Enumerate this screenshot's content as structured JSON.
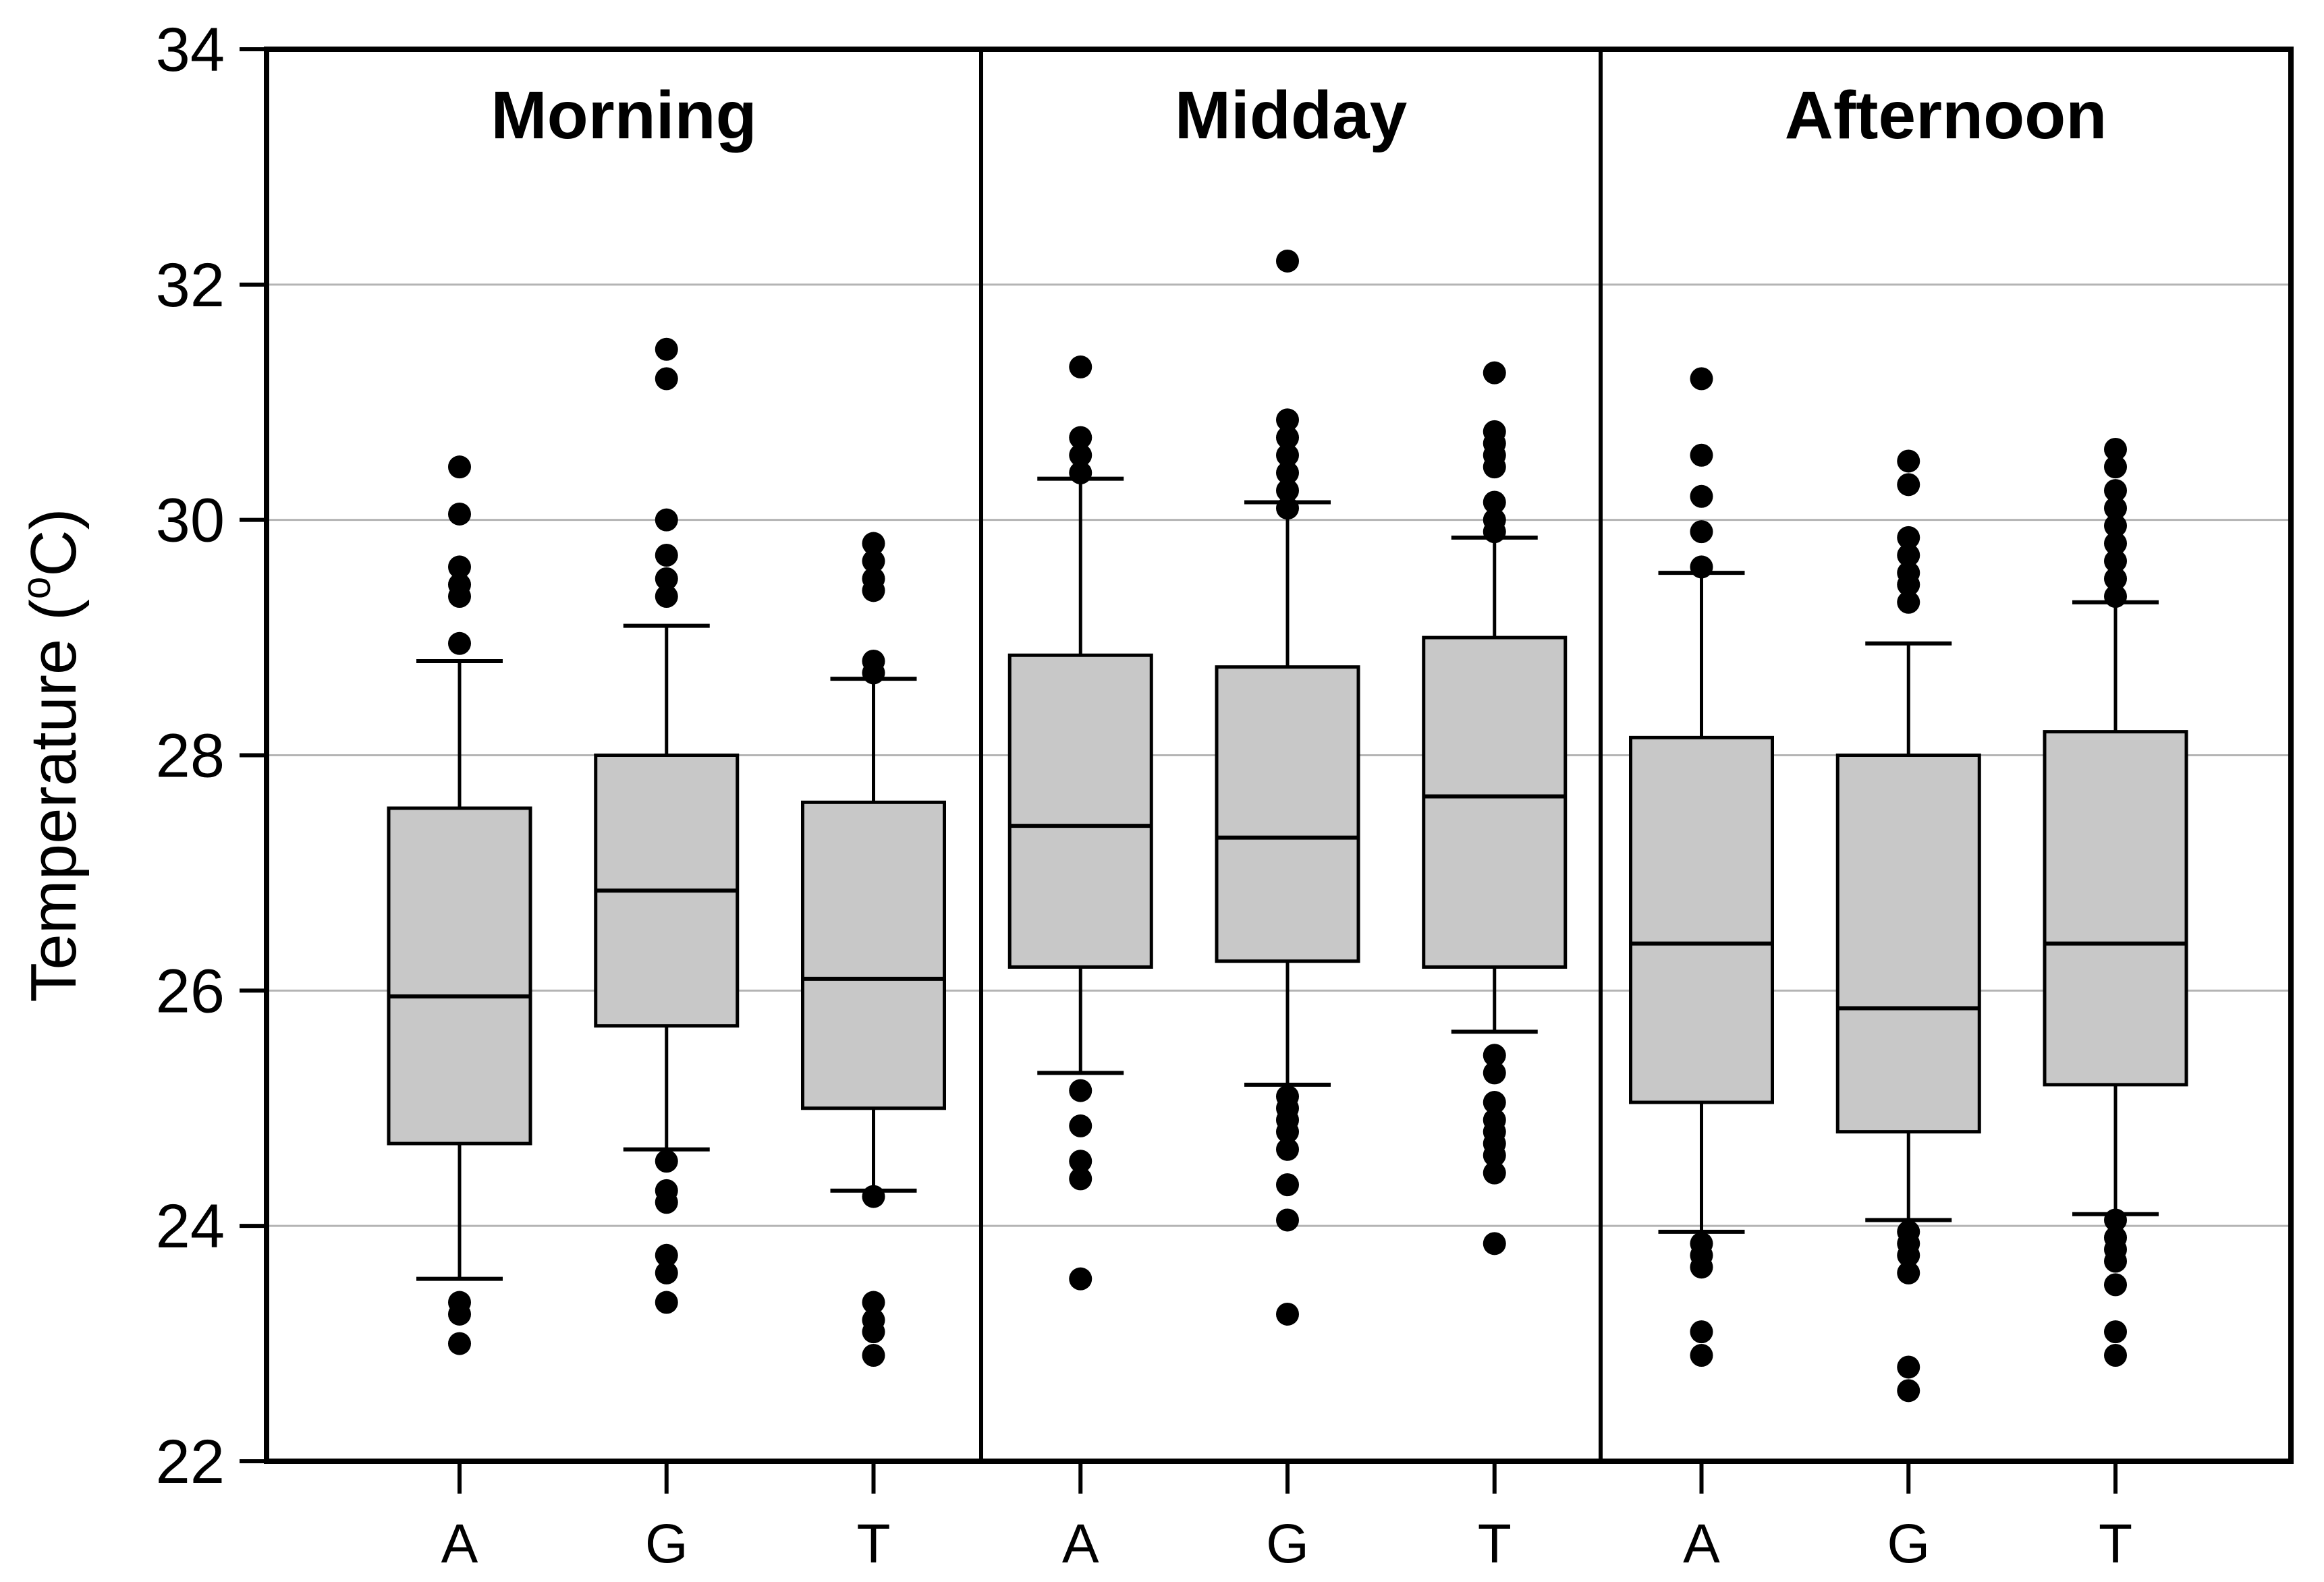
{
  "chart_data": {
    "type": "boxplot",
    "title": "",
    "ylabel_parts": {
      "prefix": "Temperature (",
      "superscript": "o",
      "suffix": "C)"
    },
    "x_categories": [
      "A",
      "G",
      "T"
    ],
    "y_axis": {
      "min": 22,
      "max": 34,
      "tick_step": 2,
      "ticks": [
        22,
        24,
        26,
        28,
        30,
        32,
        34
      ],
      "gridlines": [
        24,
        26,
        28,
        30,
        32
      ],
      "grid_on": true
    },
    "colors": {
      "box_fill": "#c8c8c8",
      "line": "#000000",
      "gridline": "#b4b4b4",
      "background": "#ffffff"
    },
    "panels": [
      {
        "label": "Morning",
        "groups": [
          {
            "label": "A",
            "whisker_low": 23.55,
            "q1": 24.7,
            "median": 25.95,
            "q3": 27.55,
            "whisker_high": 28.8,
            "low_outliers": [
              23.0,
              23.25,
              23.35
            ],
            "high_outliers": [
              28.95,
              29.35,
              29.45,
              29.6,
              30.05,
              30.45
            ]
          },
          {
            "label": "G",
            "whisker_low": 24.65,
            "q1": 25.7,
            "median": 26.85,
            "q3": 28.0,
            "whisker_high": 29.1,
            "low_outliers": [
              23.35,
              23.6,
              23.75,
              24.2,
              24.3,
              24.55
            ],
            "high_outliers": [
              29.35,
              29.5,
              29.7,
              30.0,
              31.2,
              31.45
            ]
          },
          {
            "label": "T",
            "whisker_low": 24.3,
            "q1": 25.0,
            "median": 26.1,
            "q3": 27.6,
            "whisker_high": 28.65,
            "low_outliers": [
              22.9,
              23.1,
              23.2,
              23.35,
              24.25
            ],
            "high_outliers": [
              28.7,
              28.8,
              29.4,
              29.5,
              29.65,
              29.8
            ]
          }
        ]
      },
      {
        "label": "Midday",
        "groups": [
          {
            "label": "A",
            "whisker_low": 25.3,
            "q1": 26.2,
            "median": 27.4,
            "q3": 28.85,
            "whisker_high": 30.35,
            "low_outliers": [
              23.55,
              24.4,
              24.55,
              24.85,
              25.15
            ],
            "high_outliers": [
              30.4,
              30.55,
              30.7,
              31.3
            ]
          },
          {
            "label": "G",
            "whisker_low": 25.2,
            "q1": 26.25,
            "median": 27.3,
            "q3": 28.75,
            "whisker_high": 30.15,
            "low_outliers": [
              23.25,
              24.05,
              24.35,
              24.65,
              24.8,
              24.9,
              25.0,
              25.1
            ],
            "high_outliers": [
              30.1,
              30.25,
              30.4,
              30.55,
              30.7,
              30.85,
              32.2
            ]
          },
          {
            "label": "T",
            "whisker_low": 25.65,
            "q1": 26.2,
            "median": 27.65,
            "q3": 29.0,
            "whisker_high": 29.85,
            "low_outliers": [
              23.85,
              24.45,
              24.6,
              24.7,
              24.8,
              24.9,
              25.05,
              25.3,
              25.45
            ],
            "high_outliers": [
              29.9,
              30.0,
              30.15,
              30.45,
              30.55,
              30.65,
              30.75,
              31.25
            ]
          }
        ]
      },
      {
        "label": "Afternoon",
        "groups": [
          {
            "label": "A",
            "whisker_low": 23.95,
            "q1": 25.05,
            "median": 26.4,
            "q3": 28.15,
            "whisker_high": 29.55,
            "low_outliers": [
              22.9,
              23.1,
              23.65,
              23.75,
              23.85
            ],
            "high_outliers": [
              29.6,
              29.9,
              30.2,
              30.55,
              31.2
            ]
          },
          {
            "label": "G",
            "whisker_low": 24.05,
            "q1": 24.8,
            "median": 25.85,
            "q3": 28.0,
            "whisker_high": 28.95,
            "low_outliers": [
              22.6,
              22.8,
              23.6,
              23.75,
              23.85,
              23.95
            ],
            "high_outliers": [
              29.3,
              29.45,
              29.55,
              29.7,
              29.85,
              30.3,
              30.5
            ]
          },
          {
            "label": "T",
            "whisker_low": 24.1,
            "q1": 25.2,
            "median": 26.4,
            "q3": 28.2,
            "whisker_high": 29.3,
            "low_outliers": [
              22.9,
              23.1,
              23.5,
              23.7,
              23.8,
              23.9,
              24.05
            ],
            "high_outliers": [
              29.35,
              29.5,
              29.65,
              29.8,
              29.95,
              30.1,
              30.25,
              30.45,
              30.6
            ]
          }
        ]
      }
    ]
  }
}
